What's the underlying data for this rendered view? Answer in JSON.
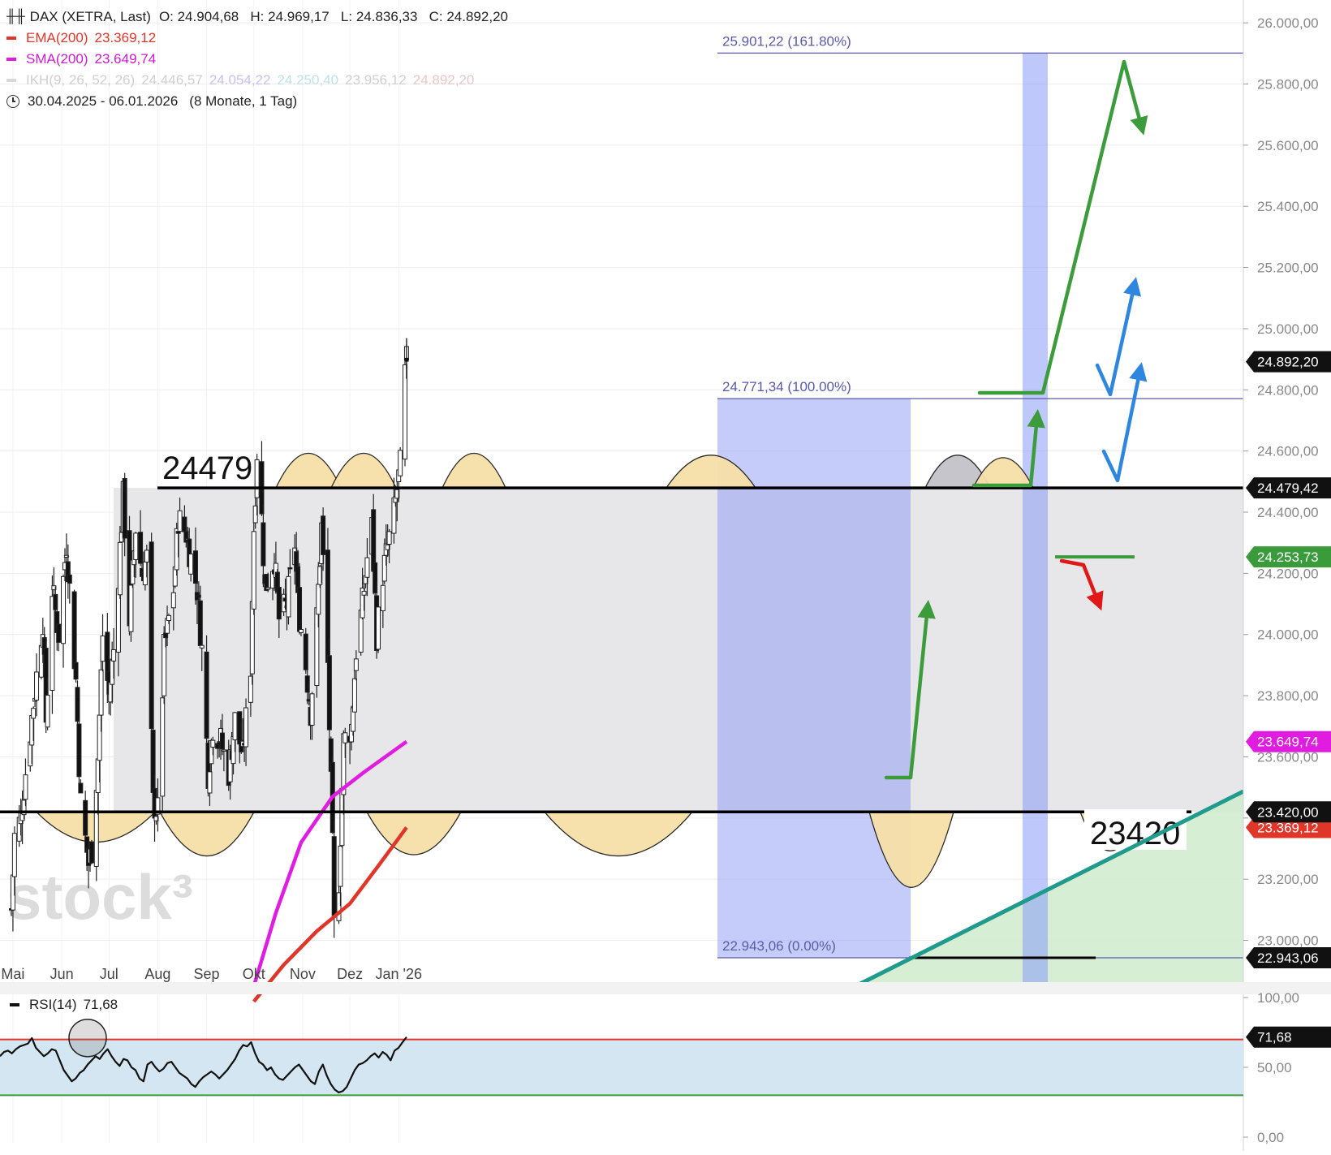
{
  "header": {
    "title": "DAX (XETRA, Last)",
    "ohlc": "O: 24.904,68   H: 24.969,17   L: 24.836,33   C: 24.892,20",
    "ema_label": "EMA(200)",
    "ema_value": "23.369,12",
    "sma_label": "SMA(200)",
    "sma_value": "23.649,74",
    "ikh_label": "IKH(9, 26, 52, 26)",
    "ikh_values": [
      "24.446,57",
      "24.054,22",
      "24.250,40",
      "23.956,12",
      "24.892,20"
    ],
    "range": "30.04.2025 - 06.01.2026",
    "range_detail": "(8 Monate, 1 Tag)"
  },
  "watermark": "stock³",
  "annotations": {
    "resistance_label": "24479",
    "support_label": "23420",
    "fib_top": "25.901,22 (161.80%)",
    "fib_mid": "24.771,34 (100.00%)",
    "fib_low": "22.943,06 (0.00%)"
  },
  "price_tags": {
    "last": "24.892,20",
    "resistance": "24.479,42",
    "green": "24.253,73",
    "sma": "23.649,74",
    "support": "23.420,00",
    "ema": "23.369,12",
    "low": "22.943,06"
  },
  "colors": {
    "ema": "#e0362a",
    "sma": "#e01ce0",
    "ikh": "#cccccc",
    "arrow_green": "#3c9c3c",
    "arrow_blue": "#2e86de",
    "arrow_red": "#e01818",
    "fib": "#5a5aa8",
    "rsi_band": "#d4e6f1"
  },
  "rsi": {
    "label": "RSI(14)",
    "value": "71,68"
  },
  "chart_data": [
    {
      "type": "candlestick",
      "title": "DAX (XETRA, Last)",
      "y_axis_ticks": [
        "23.000,00",
        "23.200,00",
        "23.400,00",
        "23.600,00",
        "23.800,00",
        "24.000,00",
        "24.200,00",
        "24.400,00",
        "24.600,00",
        "24.800,00",
        "25.000,00",
        "25.200,00",
        "25.400,00",
        "25.600,00",
        "25.800,00",
        "26.000,00"
      ],
      "x_axis_ticks": [
        "Mai",
        "Jun",
        "Jul",
        "Aug",
        "Sep",
        "Okt",
        "Nov",
        "Dez",
        "Jan '26"
      ],
      "ylim": [
        22850,
        26050
      ],
      "last_bar": {
        "open": 24904.68,
        "high": 24969.17,
        "low": 24836.33,
        "close": 24892.2
      },
      "levels": [
        {
          "name": "24479",
          "value": 24479.42
        },
        {
          "name": "23420",
          "value": 23420.0
        },
        {
          "name": "25.901,22 (161.80%)",
          "value": 25901.22
        },
        {
          "name": "24.771,34 (100.00%)",
          "value": 24771.34
        },
        {
          "name": "22.943,06 (0.00%)",
          "value": 22943.06
        }
      ],
      "close_path": [
        [
          "30.04.2025",
          23100
        ],
        [
          "02.05.2025",
          23340
        ],
        [
          "06.05.2025",
          23400
        ],
        [
          "09.05.2025",
          23550
        ],
        [
          "15.05.2025",
          23820
        ],
        [
          "20.05.2025",
          24050
        ],
        [
          "22.05.2025",
          23720
        ],
        [
          "26.05.2025",
          24150
        ],
        [
          "30.05.2025",
          24000
        ],
        [
          "04.06.2025",
          24300
        ],
        [
          "10.06.2025",
          23850
        ],
        [
          "13.06.2025",
          23450
        ],
        [
          "18.06.2025",
          23250
        ],
        [
          "20.06.2025",
          23300
        ],
        [
          "24.06.2025",
          23600
        ],
        [
          "27.06.2025",
          24000
        ],
        [
          "01.07.2025",
          23800
        ],
        [
          "04.07.2025",
          23950
        ],
        [
          "10.07.2025",
          24450
        ],
        [
          "14.07.2025",
          24050
        ],
        [
          "18.07.2025",
          24350
        ],
        [
          "22.07.2025",
          24200
        ],
        [
          "25.07.2025",
          24250
        ],
        [
          "29.07.2025",
          23450
        ],
        [
          "01.08.2025",
          23420
        ],
        [
          "05.08.2025",
          23950
        ],
        [
          "11.08.2025",
          24150
        ],
        [
          "14.08.2025",
          24380
        ],
        [
          "19.08.2025",
          24330
        ],
        [
          "22.08.2025",
          24250
        ],
        [
          "26.08.2025",
          24150
        ],
        [
          "29.08.2025",
          23950
        ],
        [
          "02.09.2025",
          23550
        ],
        [
          "05.09.2025",
          23700
        ],
        [
          "10.09.2025",
          23650
        ],
        [
          "15.09.2025",
          23550
        ],
        [
          "19.09.2025",
          23720
        ],
        [
          "24.09.2025",
          23600
        ],
        [
          "29.09.2025",
          23900
        ],
        [
          "01.10.2025",
          24350
        ],
        [
          "03.10.2025",
          24600
        ],
        [
          "06.10.2025",
          24380
        ],
        [
          "08.10.2025",
          24150
        ],
        [
          "14.10.2025",
          24250
        ],
        [
          "17.10.2025",
          24050
        ],
        [
          "22.10.2025",
          24100
        ],
        [
          "27.10.2025",
          24300
        ],
        [
          "29.10.2025",
          24100
        ],
        [
          "03.11.2025",
          23900
        ],
        [
          "06.11.2025",
          23750
        ],
        [
          "10.11.2025",
          24050
        ],
        [
          "13.11.2025",
          24350
        ],
        [
          "17.11.2025",
          23900
        ],
        [
          "20.11.2025",
          23300
        ],
        [
          "21.11.2025",
          23050
        ],
        [
          "24.11.2025",
          23200
        ],
        [
          "27.11.2025",
          23650
        ],
        [
          "02.12.2025",
          23700
        ],
        [
          "05.12.2025",
          23950
        ],
        [
          "09.12.2025",
          24100
        ],
        [
          "12.12.2025",
          24250
        ],
        [
          "15.12.2025",
          24350
        ],
        [
          "18.12.2025",
          24000
        ],
        [
          "22.12.2025",
          24200
        ],
        [
          "29.12.2025",
          24400
        ],
        [
          "02.01.2026",
          24550
        ],
        [
          "05.01.2026",
          24850
        ],
        [
          "06.01.2026",
          24892.2
        ]
      ],
      "ema200": [
        [
          "01.10.2025",
          22800
        ],
        [
          "20.10.2025",
          22920
        ],
        [
          "10.11.2025",
          23030
        ],
        [
          "01.12.2025",
          23120
        ],
        [
          "20.12.2025",
          23250
        ],
        [
          "06.01.2026",
          23369.12
        ]
      ],
      "sma200": [
        [
          "01.10.2025",
          22850
        ],
        [
          "15.10.2025",
          23090
        ],
        [
          "31.10.2025",
          23320
        ],
        [
          "20.11.2025",
          23470
        ],
        [
          "10.12.2025",
          23550
        ],
        [
          "06.01.2026",
          23649.74
        ]
      ]
    },
    {
      "type": "line",
      "title": "RSI(14)",
      "y_axis_ticks": [
        "0,00",
        "50,00",
        "100,00"
      ],
      "ylim": [
        0,
        100
      ],
      "levels": [
        70,
        30
      ],
      "last": 71.68,
      "series": [
        {
          "name": "RSI(14)",
          "values": [
            58,
            61,
            62,
            60,
            63,
            65,
            66,
            67,
            71,
            64,
            61,
            58,
            60,
            63,
            62,
            55,
            48,
            44,
            40,
            42,
            46,
            48,
            52,
            55,
            58,
            56,
            60,
            63,
            58,
            54,
            51,
            56,
            55,
            50,
            48,
            42,
            40,
            52,
            54,
            50,
            47,
            49,
            53,
            54,
            50,
            46,
            44,
            42,
            38,
            36,
            40,
            43,
            45,
            47,
            45,
            42,
            45,
            48,
            52,
            56,
            62,
            66,
            65,
            68,
            60,
            54,
            52,
            48,
            50,
            45,
            42,
            41,
            44,
            47,
            50,
            52,
            48,
            44,
            40,
            38,
            47,
            52,
            44,
            38,
            34,
            32,
            33,
            36,
            42,
            48,
            52,
            53,
            55,
            58,
            60,
            57,
            61,
            59,
            55,
            62,
            64,
            68,
            71.68
          ]
        }
      ]
    }
  ]
}
